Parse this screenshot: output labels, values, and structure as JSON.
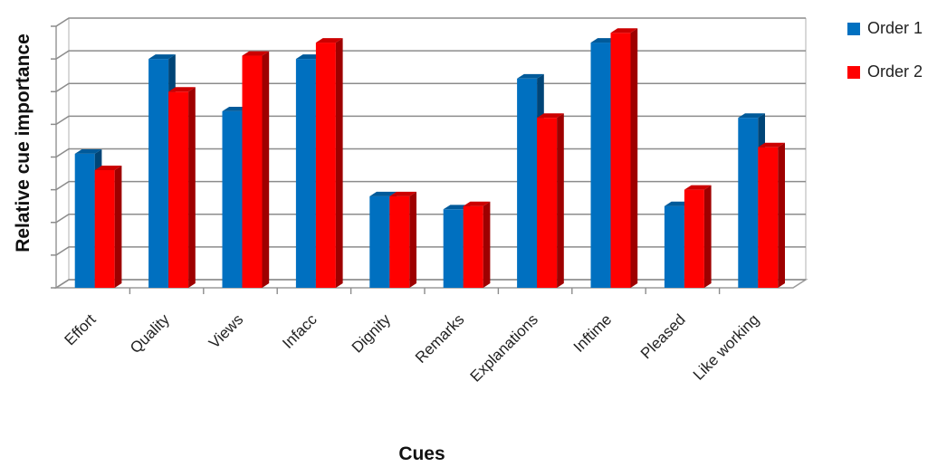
{
  "chart_data": {
    "type": "bar",
    "style": "3d-clustered-column",
    "title": "",
    "xlabel": "Cues",
    "ylabel": "Relative cue importance",
    "categories": [
      "Effort",
      "Quality",
      "Views",
      "Infacc",
      "Dignity",
      "Remarks",
      "Explanations",
      "Inftime",
      "Pleased",
      "Like working"
    ],
    "ylim": [
      0,
      8
    ],
    "ytick_labels_shown": false,
    "grid": true,
    "legend_position": "top-right",
    "series": [
      {
        "name": "Order 1",
        "color": "#0070C0",
        "values": [
          4.1,
          7.0,
          5.4,
          7.0,
          2.8,
          2.4,
          6.4,
          7.5,
          2.5,
          5.2
        ]
      },
      {
        "name": "Order 2",
        "color": "#FF0000",
        "values": [
          3.6,
          6.0,
          7.1,
          7.5,
          2.8,
          2.5,
          5.2,
          7.8,
          3.0,
          4.3
        ]
      }
    ]
  }
}
